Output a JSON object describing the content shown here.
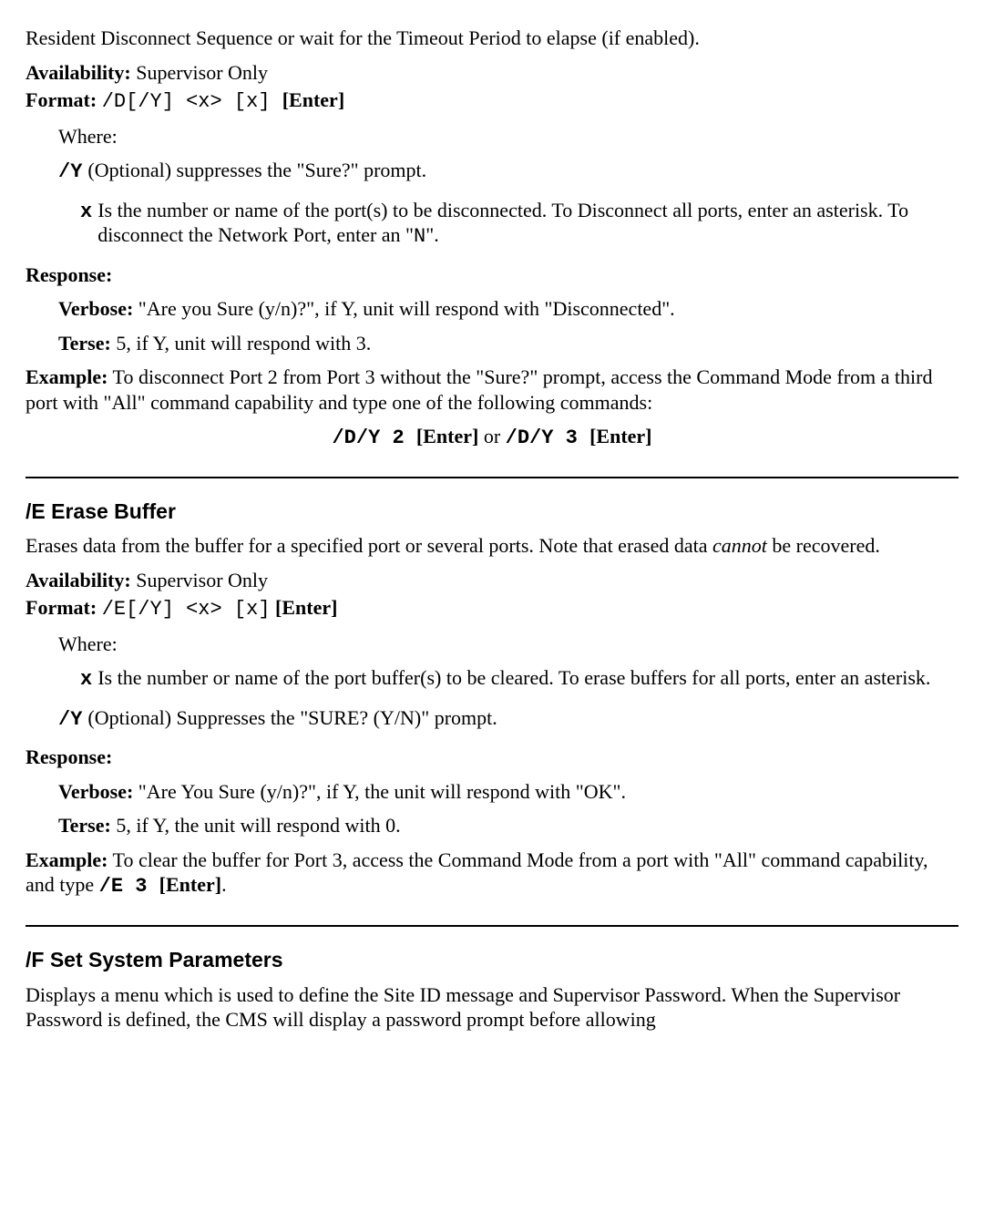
{
  "intro": "Resident Disconnect Sequence or wait for the Timeout Period to elapse (if enabled).",
  "d": {
    "avail_label": "Availability:",
    "avail_val": "  Supervisor Only",
    "format_label": "Format:  ",
    "format_val": "/D[/Y] <x> [x] ",
    "format_tail": "[Enter]",
    "where": "Where:",
    "y_label": "/Y",
    "y_body": " (Optional) suppresses the \"Sure?\" prompt.",
    "x_label": "x",
    "x_body": " Is the number or name of the port(s) to be disconnected. To Disconnect all ports, enter an asterisk. To disconnect the Network Port, enter an \"",
    "x_body_mono": "N",
    "x_body_tail": "\".",
    "response": "Response:",
    "verbose_label": "Verbose:",
    "verbose_body": "  \"Are you Sure (y/n)?\", if Y, unit will respond with \"Disconnected\".",
    "terse_label": "Terse:",
    "terse_body": "  5, if Y, unit will respond with 3.",
    "example_label": "Example:",
    "example_body": " To disconnect Port 2 from Port 3 without the \"Sure?\" prompt, access the Command Mode from a third port with \"All\" command capability and type one of the following commands:",
    "cmd1": "/D/Y 2 ",
    "enter1": "[Enter]",
    "or": "  or  ",
    "cmd2": "/D/Y 3 ",
    "enter2": "[Enter]"
  },
  "e": {
    "heading": "/E   Erase Buffer",
    "intro_a": "Erases data from the buffer for a specified port or several ports. Note that erased data ",
    "intro_i": "cannot",
    "intro_b": " be recovered.",
    "avail_label": "Availability:",
    "avail_val": "  Supervisor Only",
    "format_label": "Format:  ",
    "format_val": "/E[/Y] <x> [x]",
    "format_tail": " [Enter]",
    "where": "Where:",
    "x_label": "x",
    "x_body": " Is the number or name of the port buffer(s) to be cleared. To erase buffers for all ports, enter an asterisk.",
    "y_label": "/Y",
    "y_body": " (Optional) Suppresses the \"SURE? (Y/N)\" prompt.",
    "response": "Response:",
    "verbose_label": "Verbose:",
    "verbose_body": "  \"Are You Sure (y/n)?\", if Y, the unit will respond with \"OK\".",
    "terse_label": "Terse:",
    "terse_body": "  5, if Y, the unit will respond with 0.",
    "example_label": "Example:",
    "example_body_a": "  To clear the buffer for Port 3, access the Command Mode from a port with \"All\" command capability, and type ",
    "example_mono": "/E 3 ",
    "example_enter": "[Enter]",
    "example_tail": "."
  },
  "f": {
    "heading": "/F   Set System Parameters",
    "body": "Displays a menu which is used to define the Site ID message and Supervisor Password. When the Supervisor Password is defined, the CMS will display a password prompt before allowing"
  }
}
